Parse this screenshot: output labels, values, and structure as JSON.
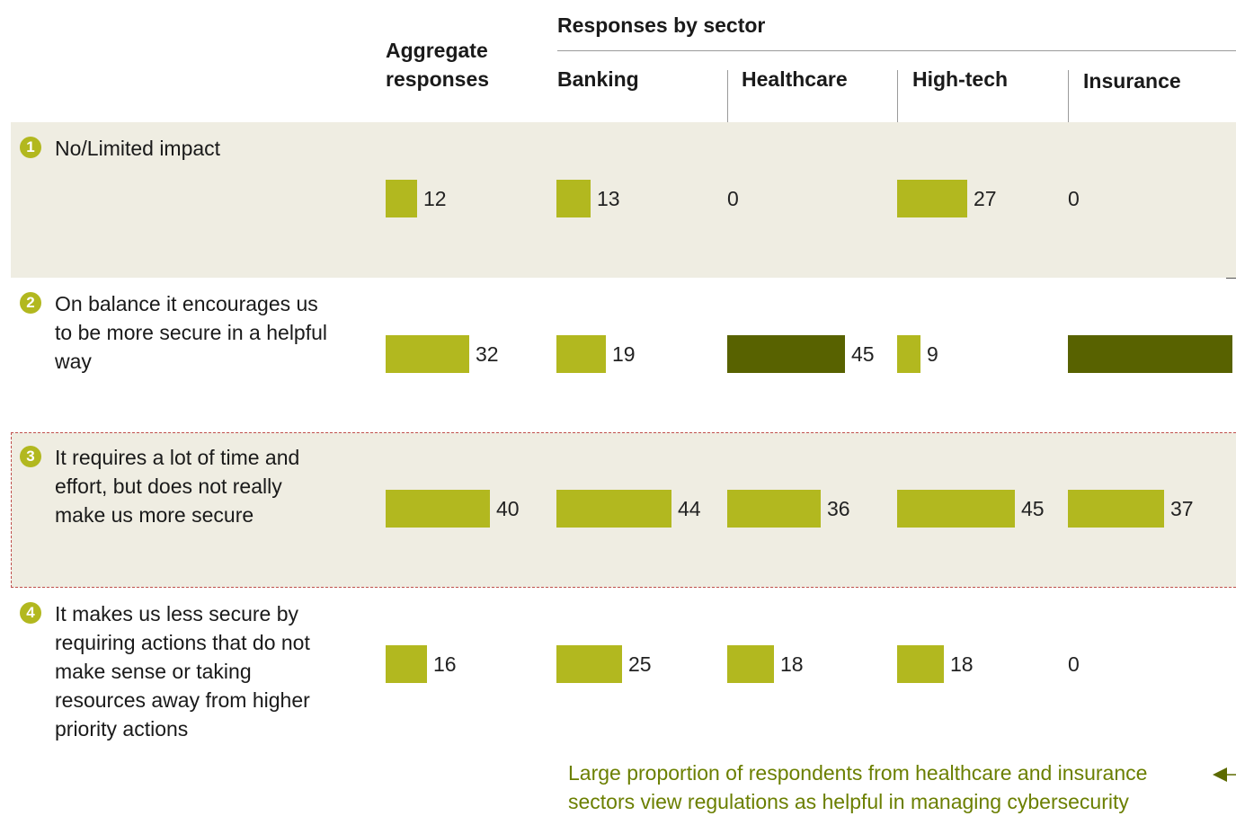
{
  "colors": {
    "bar_default": "#b2b81f",
    "bar_highlight": "#586200",
    "badge": "#b2b81f",
    "band_fill": "#efede2",
    "note_text": "#6b7f00",
    "arrow": "#5c6a00"
  },
  "headers": {
    "aggregate": "Aggregate\nresponses",
    "sector_group": "Responses by sector",
    "columns": [
      "Banking",
      "Healthcare",
      "High-tech",
      "Insurance"
    ]
  },
  "rows": [
    {
      "num": "1",
      "label": "No/Limited impact"
    },
    {
      "num": "2",
      "label": "On balance it encourages us to be more secure in a helpful way"
    },
    {
      "num": "3",
      "label": "It requires a lot of time and effort, but does not really make us more secure"
    },
    {
      "num": "4",
      "label": "It makes us less secure by requiring actions that do not make sense or taking resources away from higher priority actions"
    }
  ],
  "chart_data": {
    "type": "bar",
    "orientation": "horizontal",
    "categories": [
      "1",
      "2",
      "3",
      "4"
    ],
    "series": [
      {
        "name": "Aggregate responses",
        "values": [
          12,
          32,
          40,
          16
        ]
      },
      {
        "name": "Banking",
        "values": [
          13,
          19,
          44,
          25
        ]
      },
      {
        "name": "Healthcare",
        "values": [
          0,
          45,
          36,
          18
        ]
      },
      {
        "name": "High-tech",
        "values": [
          27,
          9,
          45,
          18
        ]
      },
      {
        "name": "Insurance",
        "values": [
          0,
          63,
          37,
          0
        ]
      }
    ],
    "highlighted": [
      {
        "series": "Healthcare",
        "row": "2"
      },
      {
        "series": "Insurance",
        "row": "2"
      }
    ]
  },
  "note": {
    "text": "Large proportion of respondents from healthcare and insurance sectors view regulations as helpful in managing cybersecurity",
    "icon": "arrow-left-icon"
  }
}
